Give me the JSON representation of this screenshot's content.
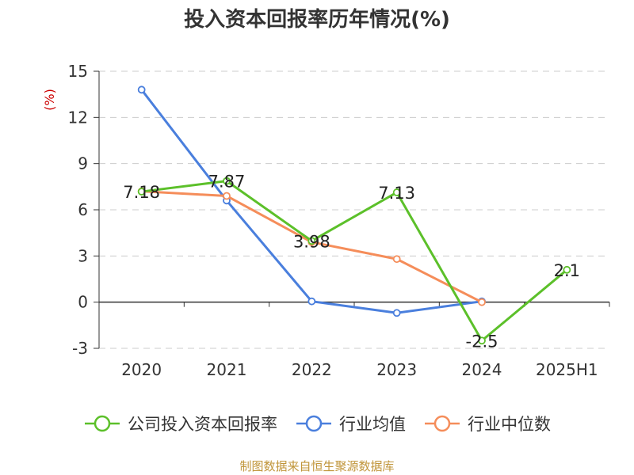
{
  "chart_data": {
    "type": "line",
    "title": "投入资本回报率历年情况(%)",
    "ylabel": "(%)",
    "xlabel": "",
    "categories": [
      "2020",
      "2021",
      "2022",
      "2023",
      "2024",
      "2025H1"
    ],
    "ylim": [
      -3,
      15
    ],
    "yticks": [
      15,
      12,
      9,
      6,
      3,
      0,
      -3
    ],
    "grid": true,
    "legend_position": "bottom",
    "series": [
      {
        "name": "公司投入资本回报率",
        "color": "#5cc02a",
        "values": [
          7.18,
          7.87,
          3.98,
          7.13,
          -2.5,
          2.1
        ],
        "labels": [
          "7.18",
          "7.87",
          "3.98",
          "7.13",
          "-2.5",
          "2.1"
        ]
      },
      {
        "name": "行业均值",
        "color": "#4a7fdd",
        "values": [
          13.8,
          6.6,
          0.05,
          -0.7,
          0.05,
          null
        ]
      },
      {
        "name": "行业中位数",
        "color": "#f58d5a",
        "values": [
          7.2,
          6.9,
          3.9,
          2.8,
          0.0,
          null
        ]
      }
    ]
  },
  "source_note": "制图数据来自恒生聚源数据库"
}
